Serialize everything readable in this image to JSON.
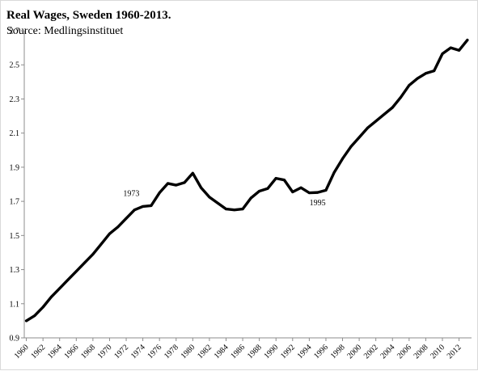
{
  "chart_data": {
    "type": "line",
    "title": "Real Wages, Sweden 1960-2013.",
    "subtitle": "Source: Medlingsinstituet",
    "xlabel": "",
    "ylabel": "",
    "ylim": [
      0.9,
      2.7
    ],
    "y_ticks": [
      "0.9",
      "1.1",
      "1.3",
      "1.5",
      "1.7",
      "1.9",
      "2.1",
      "2.3",
      "2.5",
      "2.7"
    ],
    "x_tick_labels": [
      "1960",
      "1962",
      "1964",
      "1966",
      "1968",
      "1970",
      "1972",
      "1974",
      "1976",
      "1978",
      "1980",
      "1982",
      "1984",
      "1986",
      "1988",
      "1990",
      "1992",
      "1994",
      "1996",
      "1998",
      "2000",
      "2002",
      "2004",
      "2006",
      "2008",
      "2010",
      "2012"
    ],
    "grid": false,
    "legend": "none",
    "line_color": "#000000",
    "annotations": [
      {
        "label": "1973",
        "x": 1973,
        "y": 1.655
      },
      {
        "label": "1995",
        "x": 1995,
        "y": 1.752
      }
    ],
    "series": [
      {
        "x": [
          1960,
          1961,
          1962,
          1963,
          1964,
          1965,
          1966,
          1967,
          1968,
          1969,
          1970,
          1971,
          1972,
          1973,
          1974,
          1975,
          1976,
          1977,
          1978,
          1979,
          1980,
          1981,
          1982,
          1983,
          1984,
          1985,
          1986,
          1987,
          1988,
          1989,
          1990,
          1991,
          1992,
          1993,
          1994,
          1995,
          1996,
          1997,
          1998,
          1999,
          2000,
          2001,
          2002,
          2003,
          2004,
          2005,
          2006,
          2007,
          2008,
          2009,
          2010,
          2011,
          2012,
          2013
        ],
        "values": [
          1.0,
          1.03,
          1.08,
          1.14,
          1.19,
          1.24,
          1.29,
          1.34,
          1.39,
          1.45,
          1.51,
          1.55,
          1.6,
          1.65,
          1.67,
          1.675,
          1.75,
          1.805,
          1.795,
          1.81,
          1.865,
          1.78,
          1.725,
          1.69,
          1.655,
          1.65,
          1.655,
          1.72,
          1.76,
          1.775,
          1.835,
          1.825,
          1.755,
          1.78,
          1.75,
          1.752,
          1.765,
          1.87,
          1.95,
          2.02,
          2.075,
          2.13,
          2.17,
          2.21,
          2.25,
          2.31,
          2.38,
          2.42,
          2.45,
          2.465,
          2.565,
          2.6,
          2.585,
          2.645
        ]
      }
    ]
  }
}
